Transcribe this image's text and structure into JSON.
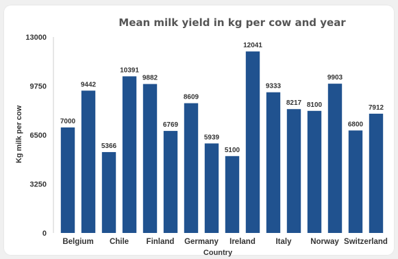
{
  "chart_data": {
    "type": "bar",
    "title": "Mean milk yield in kg per cow and year",
    "xlabel": "Country",
    "ylabel": "Kg milk per cow",
    "ylim": [
      0,
      13000
    ],
    "yticks": [
      0,
      3250,
      6500,
      9750,
      13000
    ],
    "grid": false,
    "categories": [
      "Belgium",
      "",
      "Chile",
      "",
      "Finland",
      "",
      "Germany",
      "",
      "Ireland",
      "",
      "Italy",
      "",
      "Norway",
      "",
      "Switzerland",
      ""
    ],
    "values": [
      7000,
      9442,
      5366,
      10391,
      9882,
      6769,
      8609,
      5939,
      5100,
      12041,
      9333,
      8217,
      8100,
      9903,
      6800,
      7912
    ],
    "bar_color": "#20528f"
  }
}
